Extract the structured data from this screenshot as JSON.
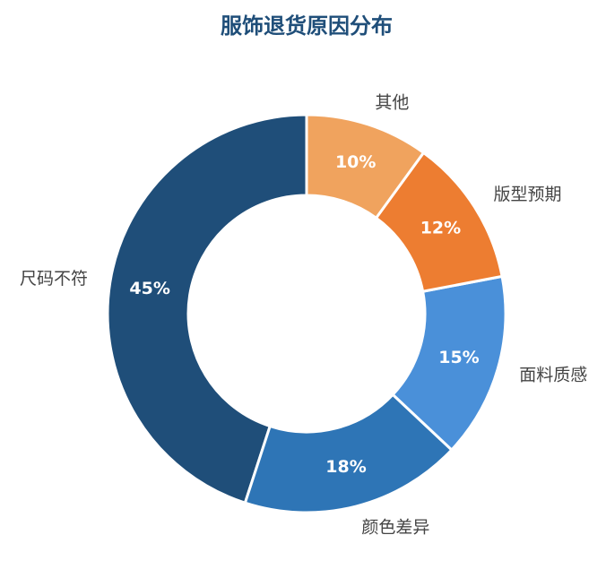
{
  "chart_data": {
    "type": "pie",
    "title": "服饰退货原因分布",
    "categories": [
      "尺码不符",
      "颜色差异",
      "面料质感",
      "版型预期",
      "其他"
    ],
    "values": [
      45,
      18,
      15,
      12,
      10
    ],
    "value_labels": [
      "45%",
      "18%",
      "15%",
      "12%",
      "10%"
    ],
    "colors": [
      "#1f4e79",
      "#2e75b6",
      "#4a90d9",
      "#ed7d31",
      "#f0a35e"
    ],
    "donut": true
  }
}
